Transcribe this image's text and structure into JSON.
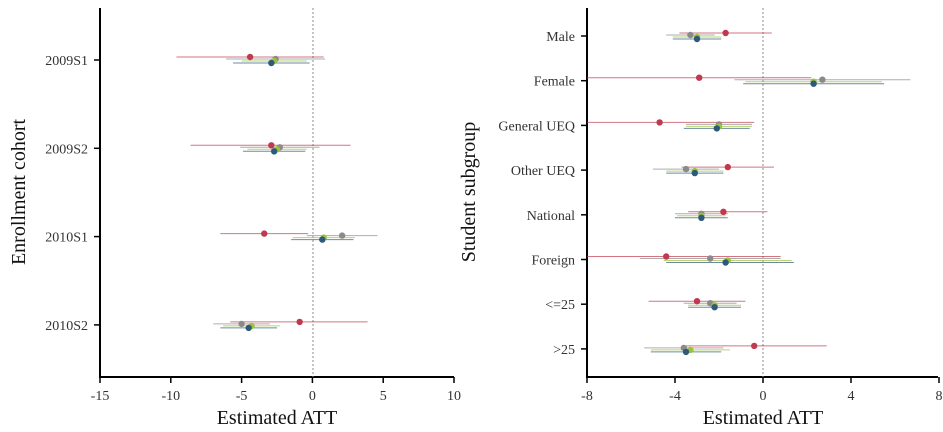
{
  "chart_data": [
    {
      "type": "scatter",
      "xlabel": "Estimated ATT",
      "ylabel": "Enrollment cohort",
      "xlim": [
        -15,
        10
      ],
      "xticks": [
        "-15",
        "-10",
        "-5",
        "0",
        "5",
        "10"
      ],
      "categories": [
        "2009S1",
        "2009S2",
        "2010S1",
        "2010S2"
      ],
      "reference_line": 0,
      "series": [
        {
          "color": "#c0394f",
          "offset": -1.5,
          "points": [
            {
              "y": "2009S1",
              "x": -4.4,
              "lo": -9.6,
              "hi": 0.8
            },
            {
              "y": "2009S2",
              "x": -2.9,
              "lo": -8.6,
              "hi": 2.7
            },
            {
              "y": "2010S1",
              "x": -3.4,
              "lo": -6.5,
              "hi": -0.3
            },
            {
              "y": "2010S2",
              "x": -0.9,
              "lo": -5.8,
              "hi": 3.9
            }
          ]
        },
        {
          "color": "#8a8a8a",
          "offset": -0.5,
          "points": [
            {
              "y": "2009S1",
              "x": -2.6,
              "lo": -6.1,
              "hi": 0.9
            },
            {
              "y": "2009S2",
              "x": -2.3,
              "lo": -5.1,
              "hi": 0.5
            },
            {
              "y": "2010S1",
              "x": 2.1,
              "lo": -0.4,
              "hi": 4.6
            },
            {
              "y": "2010S2",
              "x": -5.0,
              "lo": -7.0,
              "hi": -3.0
            }
          ]
        },
        {
          "color": "#9cc23c",
          "offset": 0.5,
          "points": [
            {
              "y": "2009S1",
              "x": -2.7,
              "lo": -5.0,
              "hi": -0.4
            },
            {
              "y": "2009S2",
              "x": -2.5,
              "lo": -4.6,
              "hi": -0.4
            },
            {
              "y": "2010S1",
              "x": 0.8,
              "lo": -1.4,
              "hi": 3.0
            },
            {
              "y": "2010S2",
              "x": -4.3,
              "lo": -6.3,
              "hi": -2.3
            }
          ]
        },
        {
          "color": "#2d5a78",
          "offset": 1.5,
          "points": [
            {
              "y": "2009S1",
              "x": -2.9,
              "lo": -5.6,
              "hi": -0.2
            },
            {
              "y": "2009S2",
              "x": -2.7,
              "lo": -4.9,
              "hi": -0.5
            },
            {
              "y": "2010S1",
              "x": 0.7,
              "lo": -1.5,
              "hi": 2.9
            },
            {
              "y": "2010S2",
              "x": -4.5,
              "lo": -6.5,
              "hi": -2.5
            }
          ]
        }
      ]
    },
    {
      "type": "scatter",
      "xlabel": "Estimated ATT",
      "ylabel": "Student subgroup",
      "xlim": [
        -8,
        8
      ],
      "xticks": [
        "-8",
        "-4",
        "0",
        "4",
        "8"
      ],
      "categories": [
        "Male",
        "Female",
        "General UEQ",
        "Other UEQ",
        "National",
        "Foreign",
        "<=25",
        ">25"
      ],
      "reference_line": 0,
      "series": [
        {
          "color": "#c0394f",
          "offset": -1.5,
          "points": [
            {
              "y": "Male",
              "x": -1.7,
              "lo": -3.8,
              "hi": 0.4
            },
            {
              "y": "Female",
              "x": -2.9,
              "lo": -8.0,
              "hi": 2.2
            },
            {
              "y": "General UEQ",
              "x": -4.7,
              "lo": -8.0,
              "hi": -0.4
            },
            {
              "y": "Other UEQ",
              "x": -1.6,
              "lo": -3.7,
              "hi": 0.5
            },
            {
              "y": "National",
              "x": -1.8,
              "lo": -3.4,
              "hi": 0.2
            },
            {
              "y": "Foreign",
              "x": -4.4,
              "lo": -8.0,
              "hi": 0.8
            },
            {
              "y": "<=25",
              "x": -3.0,
              "lo": -5.2,
              "hi": -0.8
            },
            {
              "y": ">25",
              "x": -0.4,
              "lo": -3.5,
              "hi": 2.9
            }
          ]
        },
        {
          "color": "#8a8a8a",
          "offset": -0.5,
          "points": [
            {
              "y": "Male",
              "x": -3.3,
              "lo": -4.4,
              "hi": -2.2
            },
            {
              "y": "Female",
              "x": 2.7,
              "lo": -1.3,
              "hi": 6.7
            },
            {
              "y": "General UEQ",
              "x": -2.0,
              "lo": -3.5,
              "hi": -0.5
            },
            {
              "y": "Other UEQ",
              "x": -3.5,
              "lo": -5.0,
              "hi": -2.0
            },
            {
              "y": "National",
              "x": -2.8,
              "lo": -4.0,
              "hi": -1.6
            },
            {
              "y": "Foreign",
              "x": -2.4,
              "lo": -5.6,
              "hi": 0.8
            },
            {
              "y": "<=25",
              "x": -2.4,
              "lo": -3.6,
              "hi": -1.2
            },
            {
              "y": ">25",
              "x": -3.6,
              "lo": -5.4,
              "hi": -1.8
            }
          ]
        },
        {
          "color": "#9cc23c",
          "offset": 0.5,
          "points": [
            {
              "y": "Male",
              "x": -3.0,
              "lo": -4.1,
              "hi": -1.9
            },
            {
              "y": "Female",
              "x": 2.3,
              "lo": -0.8,
              "hi": 5.4
            },
            {
              "y": "General UEQ",
              "x": -2.0,
              "lo": -3.5,
              "hi": -0.5
            },
            {
              "y": "Other UEQ",
              "x": -3.1,
              "lo": -4.4,
              "hi": -1.8
            },
            {
              "y": "National",
              "x": -2.8,
              "lo": -3.9,
              "hi": -1.7
            },
            {
              "y": "Foreign",
              "x": -1.6,
              "lo": -4.5,
              "hi": 1.3
            },
            {
              "y": "<=25",
              "x": -2.2,
              "lo": -3.4,
              "hi": -1.0
            },
            {
              "y": ">25",
              "x": -3.3,
              "lo": -5.1,
              "hi": -1.5
            }
          ]
        },
        {
          "color": "#2d5a78",
          "offset": 1.5,
          "points": [
            {
              "y": "Male",
              "x": -3.0,
              "lo": -4.1,
              "hi": -1.9
            },
            {
              "y": "Female",
              "x": 2.3,
              "lo": -0.9,
              "hi": 5.5
            },
            {
              "y": "General UEQ",
              "x": -2.1,
              "lo": -3.6,
              "hi": -0.6
            },
            {
              "y": "Other UEQ",
              "x": -3.1,
              "lo": -4.4,
              "hi": -1.8
            },
            {
              "y": "National",
              "x": -2.8,
              "lo": -4.0,
              "hi": -1.6
            },
            {
              "y": "Foreign",
              "x": -1.7,
              "lo": -4.4,
              "hi": 1.4
            },
            {
              "y": "<=25",
              "x": -2.2,
              "lo": -3.4,
              "hi": -1.0
            },
            {
              "y": ">25",
              "x": -3.5,
              "lo": -5.1,
              "hi": -1.9
            }
          ]
        }
      ]
    }
  ]
}
